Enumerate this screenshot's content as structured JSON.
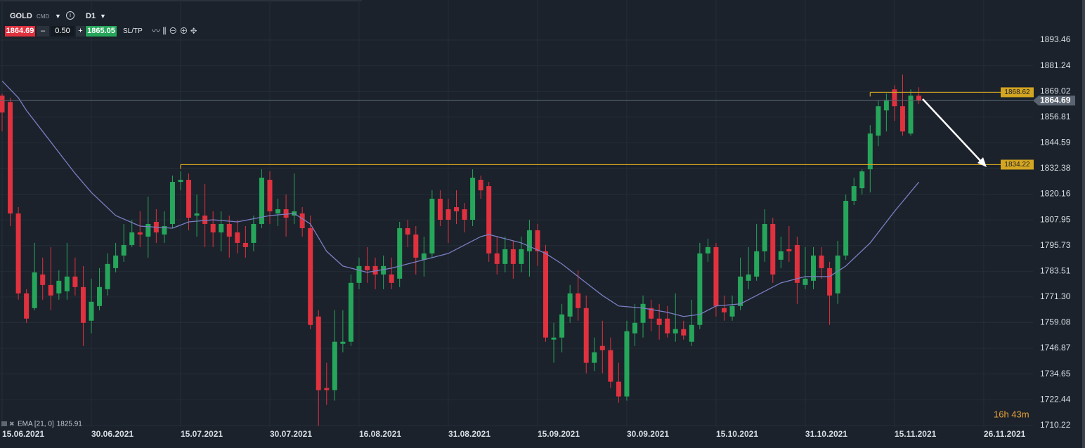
{
  "toolbar": {
    "symbol": "GOLD",
    "market": "CMD",
    "timeframe": "D1",
    "sell": "1864.69",
    "minus": "–",
    "volume": "0.50",
    "plus": "+",
    "buy": "1865.05",
    "sltp": "SL/TP"
  },
  "chart_data": {
    "type": "candlestick",
    "up_color": "#26a65b",
    "down_color": "#e0313f",
    "open": [
      1867,
      1864,
      1811,
      1773,
      1766,
      1782,
      1777,
      1773,
      1774,
      1781,
      1776,
      1760,
      1767,
      1775,
      1785,
      1791,
      1796,
      1802,
      1800,
      1807,
      1801,
      1806,
      1826,
      1827,
      1810,
      1810,
      1806,
      1802,
      1806,
      1802,
      1797,
      1797,
      1806,
      1827,
      1811,
      1813,
      1810,
      1811,
      1804,
      1762,
      1728,
      1727,
      1749,
      1750,
      1778,
      1786,
      1786,
      1782,
      1782,
      1780,
      1804,
      1801,
      1789,
      1792,
      1818,
      1813,
      1814,
      1813,
      1808,
      1827,
      1824,
      1792,
      1787,
      1794,
      1787,
      1793,
      1803,
      1793,
      1751,
      1752,
      1762,
      1773,
      1766,
      1740,
      1748,
      1746,
      1731,
      1724,
      1754,
      1759,
      1766,
      1761,
      1761,
      1754,
      1756,
      1750,
      1758,
      1792,
      1795,
      1766,
      1762,
      1767,
      1779,
      1781,
      1793,
      1806,
      1789,
      1794,
      1796,
      1777,
      1779,
      1791,
      1785,
      1773,
      1791,
      1817,
      1823,
      1832,
      1848,
      1860,
      1870,
      1862,
      1849,
      1867
    ],
    "high": [
      1868,
      1866,
      1814,
      1775,
      1797,
      1790,
      1795,
      1784,
      1797,
      1790,
      1786,
      1780,
      1785,
      1792,
      1797,
      1806,
      1808,
      1812,
      1819,
      1813,
      1812,
      1829,
      1831,
      1830,
      1820,
      1825,
      1812,
      1812,
      1810,
      1808,
      1805,
      1810,
      1832,
      1831,
      1818,
      1820,
      1830,
      1814,
      1810,
      1765,
      1740,
      1765,
      1765,
      1782,
      1790,
      1795,
      1790,
      1791,
      1790,
      1807,
      1808,
      1805,
      1800,
      1822,
      1822,
      1818,
      1822,
      1816,
      1832,
      1829,
      1826,
      1800,
      1800,
      1798,
      1800,
      1808,
      1806,
      1796,
      1759,
      1768,
      1777,
      1784,
      1772,
      1752,
      1760,
      1752,
      1740,
      1760,
      1768,
      1772,
      1770,
      1768,
      1767,
      1773,
      1760,
      1770,
      1797,
      1799,
      1797,
      1772,
      1772,
      1790,
      1795,
      1806,
      1813,
      1809,
      1800,
      1805,
      1800,
      1795,
      1795,
      1795,
      1788,
      1798,
      1820,
      1828,
      1832,
      1853,
      1865,
      1868,
      1872,
      1877,
      1870,
      1871
    ],
    "low": [
      1850,
      1805,
      1770,
      1759,
      1765,
      1770,
      1765,
      1770,
      1770,
      1772,
      1748,
      1754,
      1765,
      1772,
      1783,
      1788,
      1795,
      1795,
      1790,
      1797,
      1797,
      1804,
      1822,
      1803,
      1800,
      1795,
      1795,
      1793,
      1790,
      1792,
      1790,
      1793,
      1804,
      1806,
      1805,
      1800,
      1806,
      1800,
      1756,
      1710,
      1720,
      1722,
      1745,
      1748,
      1775,
      1778,
      1775,
      1775,
      1775,
      1776,
      1795,
      1782,
      1781,
      1790,
      1805,
      1797,
      1806,
      1802,
      1805,
      1818,
      1788,
      1782,
      1783,
      1780,
      1783,
      1781,
      1786,
      1750,
      1740,
      1745,
      1759,
      1760,
      1735,
      1736,
      1735,
      1728,
      1721,
      1722,
      1748,
      1752,
      1755,
      1751,
      1752,
      1750,
      1751,
      1748,
      1756,
      1788,
      1762,
      1760,
      1760,
      1765,
      1775,
      1779,
      1788,
      1778,
      1785,
      1788,
      1768,
      1775,
      1775,
      1780,
      1758,
      1768,
      1789,
      1815,
      1820,
      1821,
      1843,
      1850,
      1855,
      1848,
      1848,
      1863
    ],
    "close": [
      1859,
      1811,
      1773,
      1761,
      1783,
      1777,
      1772,
      1779,
      1781,
      1776,
      1759,
      1769,
      1776,
      1787,
      1791,
      1796,
      1802,
      1801,
      1806,
      1802,
      1805,
      1826,
      1827,
      1809,
      1811,
      1806,
      1802,
      1806,
      1800,
      1797,
      1795,
      1806,
      1828,
      1812,
      1813,
      1809,
      1812,
      1804,
      1758,
      1727,
      1727,
      1750,
      1750,
      1778,
      1786,
      1784,
      1782,
      1786,
      1778,
      1804,
      1801,
      1790,
      1792,
      1818,
      1808,
      1808,
      1812,
      1808,
      1828,
      1822,
      1792,
      1787,
      1794,
      1787,
      1794,
      1803,
      1793,
      1752,
      1752,
      1763,
      1773,
      1766,
      1740,
      1745,
      1746,
      1731,
      1724,
      1755,
      1759,
      1768,
      1761,
      1758,
      1754,
      1756,
      1753,
      1758,
      1792,
      1795,
      1767,
      1764,
      1767,
      1781,
      1782,
      1793,
      1806,
      1782,
      1793,
      1793,
      1778,
      1780,
      1791,
      1785,
      1772,
      1791,
      1817,
      1824,
      1831,
      1849,
      1862,
      1865,
      1862,
      1850,
      1867,
      1864.69
    ],
    "indicator": {
      "name": "EMA [21, 0]",
      "color": "#7b7fc4",
      "x": [
        0,
        2,
        3,
        5,
        7,
        9,
        11,
        14,
        17,
        21,
        23,
        26,
        29,
        33,
        36,
        38,
        40,
        42,
        45,
        48,
        52,
        55,
        59,
        60,
        64,
        67,
        69,
        72,
        74,
        76,
        79,
        82,
        84,
        86,
        88,
        91,
        93,
        96,
        99,
        102,
        104,
        107,
        110,
        113
      ],
      "values": [
        1874,
        1866,
        1860,
        1850,
        1840,
        1830,
        1821,
        1810,
        1805,
        1804,
        1807,
        1808,
        1807,
        1810,
        1811,
        1806,
        1793,
        1786,
        1783,
        1785,
        1789,
        1792,
        1800,
        1801,
        1797,
        1792,
        1787,
        1778,
        1772,
        1767,
        1766,
        1764,
        1762,
        1763,
        1767,
        1768,
        1772,
        1778,
        1781,
        1781,
        1786,
        1797,
        1812,
        1825.91
      ]
    },
    "levels": [
      {
        "value": 1868.62,
        "from": 107
      },
      {
        "value": 1834.22,
        "from": 22
      }
    ],
    "level_color": "#d4a520",
    "last_price": 1864.69,
    "countdown": "16h 43m",
    "xlim": [
      -0.26,
      127.07
    ],
    "xticks": [
      {
        "value": 0,
        "label": "15.06.2021"
      },
      {
        "value": 11,
        "label": "30.06.2021"
      },
      {
        "value": 22,
        "label": "15.07.2021"
      },
      {
        "value": 33,
        "label": "30.07.2021"
      },
      {
        "value": 44,
        "label": "16.08.2021"
      },
      {
        "value": 55,
        "label": "31.08.2021"
      },
      {
        "value": 66,
        "label": "15.09.2021"
      },
      {
        "value": 77,
        "label": "30.09.2021"
      },
      {
        "value": 88,
        "label": "15.10.2021"
      },
      {
        "value": 99,
        "label": "31.10.2021"
      },
      {
        "value": 110,
        "label": "15.11.2021"
      },
      {
        "value": 121,
        "label": "26.11.2021"
      }
    ],
    "ylim": [
      1709.5,
      1912.5
    ],
    "yticks": [
      1893.46,
      1881.24,
      1869.02,
      1856.81,
      1844.59,
      1832.38,
      1820.16,
      1807.95,
      1795.73,
      1783.51,
      {
        "value": 1771.3,
        "label": "1771.30"
      },
      1759.08,
      1746.87,
      1734.65,
      1722.44,
      1710.22
    ],
    "grid": true
  }
}
